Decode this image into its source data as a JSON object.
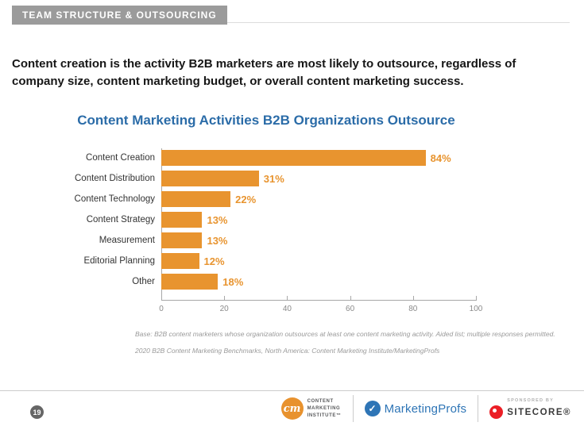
{
  "header": {
    "section_label": "TEAM STRUCTURE & OUTSOURCING"
  },
  "statement": "Content creation is the activity B2B marketers are most likely to outsource, regardless of company size, content marketing budget, or overall content marketing success.",
  "chart_data": {
    "type": "bar",
    "orientation": "horizontal",
    "title": "Content Marketing Activities B2B Organizations Outsource",
    "categories": [
      "Content Creation",
      "Content Distribution",
      "Content Technology",
      "Content Strategy",
      "Measurement",
      "Editorial Planning",
      "Other"
    ],
    "values": [
      84,
      31,
      22,
      13,
      13,
      12,
      18
    ],
    "value_labels": [
      "84%",
      "31%",
      "22%",
      "13%",
      "13%",
      "12%",
      "18%"
    ],
    "xlim": [
      0,
      100
    ],
    "x_ticks": [
      0,
      20,
      40,
      60,
      80,
      100
    ],
    "grid": false,
    "legend": "none",
    "bar_color": "#E8942F",
    "value_label_color": "#E8942F",
    "title_color": "#2B6CA8"
  },
  "footnotes": {
    "base": "Base: B2B content marketers whose organization outsources at least one content marketing activity. Aided list; multiple responses permitted.",
    "source": "2020 B2B Content Marketing Benchmarks, North America: Content Marketing Institute/MarketingProfs"
  },
  "footer": {
    "page_number": "19",
    "cmi_logo": {
      "monogram": "cm",
      "line1": "CONTENT",
      "line2": "MARKETING",
      "line3": "INSTITUTE™"
    },
    "marketingprofs_label": "MarketingProfs",
    "sponsored_by_label": "SPONSORED BY",
    "sitecore_label": "SITECORE®"
  },
  "colors": {
    "accent_orange": "#E8942F",
    "title_blue": "#2B6CA8",
    "header_gray": "#9B9B9B",
    "marketingprofs_blue": "#2E75B6",
    "sitecore_red": "#EB1F26"
  }
}
